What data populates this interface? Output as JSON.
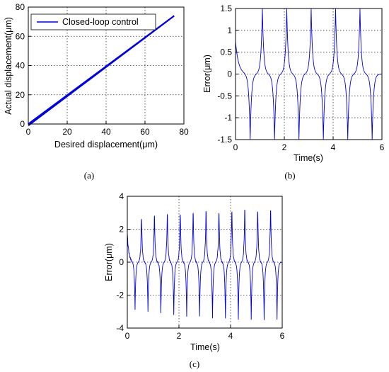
{
  "chart_data": [
    {
      "id": "a",
      "type": "line",
      "caption": "(a)",
      "xlabel": "Desired displacement(μm)",
      "ylabel": "Actual displacement(μm)",
      "xlim": [
        0,
        80
      ],
      "ylim": [
        0,
        80
      ],
      "xticks": [
        0,
        20,
        40,
        60,
        80
      ],
      "yticks": [
        0,
        20,
        40,
        60,
        80
      ],
      "grid": true,
      "legend": {
        "position": "top-left",
        "entries": [
          "Closed-loop control"
        ]
      },
      "series": [
        {
          "name": "Closed-loop control",
          "color": "#0000dd",
          "x": [
            0,
            75,
            0
          ],
          "y": [
            0,
            74,
            -1
          ]
        }
      ]
    },
    {
      "id": "b",
      "type": "line",
      "caption": "(b)",
      "xlabel": "Time(s)",
      "ylabel": "Error(μm)",
      "xlim": [
        0,
        6
      ],
      "ylim": [
        -1.5,
        1.5
      ],
      "xticks": [
        0,
        2,
        4,
        6
      ],
      "yticks": [
        -1.5,
        -1,
        -0.5,
        0,
        0.5,
        1,
        1.5
      ],
      "grid": true,
      "series": [
        {
          "color": "#0000dd",
          "signal": {
            "period": 1.0,
            "positive_peak_times": [
              1.1,
              2.1,
              3.1,
              4.1,
              5.1
            ],
            "negative_peak_times": [
              0.6,
              1.6,
              2.6,
              3.6,
              4.6,
              5.6
            ],
            "positive_peak": 1.5,
            "negative_peak": -1.5,
            "initial_value": 0.75
          }
        }
      ]
    },
    {
      "id": "c",
      "type": "line",
      "caption": "(c)",
      "xlabel": "Time(s)",
      "ylabel": "Error(μm)",
      "xlim": [
        0,
        6
      ],
      "ylim": [
        -4,
        4
      ],
      "xticks": [
        0,
        2,
        4,
        6
      ],
      "yticks": [
        -4,
        -2,
        0,
        2,
        4
      ],
      "grid": true,
      "series": [
        {
          "color": "#0000dd",
          "signal": {
            "period": 0.5,
            "positive_peak_times": [
              0.55,
              1.05,
              1.55,
              2.05,
              2.55,
              3.05,
              3.55,
              4.05,
              4.55,
              5.05,
              5.55
            ],
            "positive_peaks": [
              3.0,
              3.1,
              3.2,
              3.3,
              3.3,
              3.4,
              3.4,
              3.4,
              3.5,
              3.5,
              3.5
            ],
            "negative_peak_times": [
              0.3,
              0.8,
              1.3,
              1.8,
              2.3,
              2.8,
              3.3,
              3.8,
              4.3,
              4.8,
              5.3,
              5.8
            ],
            "negative_peaks": [
              -2.9,
              -3.0,
              -3.1,
              -3.2,
              -3.3,
              -3.3,
              -3.4,
              -3.4,
              -3.5,
              -3.5,
              -3.5,
              -3.5
            ],
            "initial_value": 1.7
          }
        }
      ]
    }
  ]
}
